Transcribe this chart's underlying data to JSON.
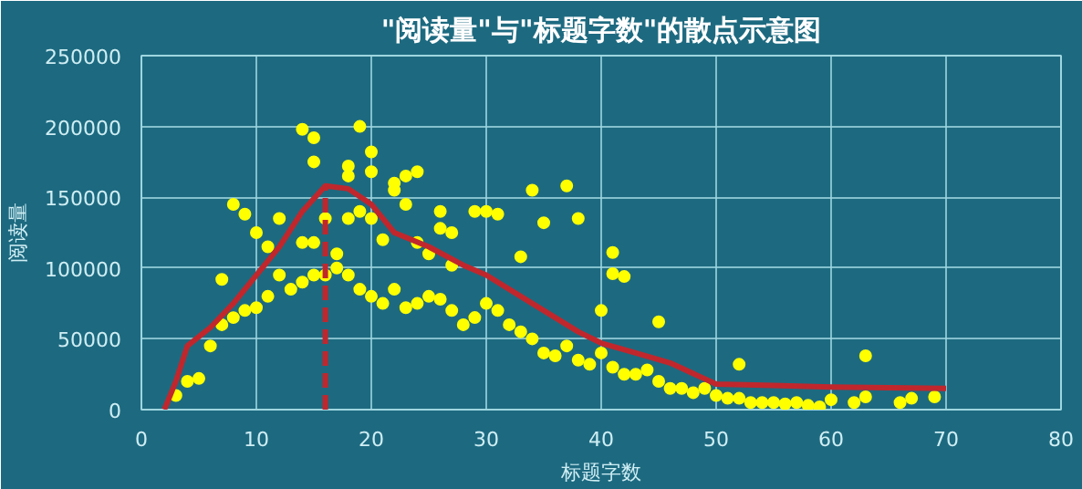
{
  "chart_data": {
    "type": "scatter",
    "title": "\"阅读量\"与\"标题字数\"的散点示意图",
    "xlabel": "标题字数",
    "ylabel": "阅读量",
    "xlim": [
      0,
      80
    ],
    "xticks": [
      0,
      10,
      20,
      30,
      40,
      50,
      60,
      70,
      80
    ],
    "ylim": [
      0,
      250000
    ],
    "yticks": [
      0,
      50000,
      100000,
      150000,
      200000,
      250000
    ],
    "grid": true,
    "series": [
      {
        "marker": "circle",
        "color": "#ffff00",
        "x": [
          3,
          4,
          5,
          6,
          7,
          8,
          9,
          10,
          11,
          12,
          13,
          14,
          15,
          16,
          17,
          18,
          19,
          20,
          21,
          22,
          23,
          24,
          25,
          26,
          27,
          28,
          29,
          30,
          31,
          32,
          33,
          34,
          35,
          36,
          37,
          38,
          39,
          40,
          41,
          42,
          43,
          44,
          45,
          46,
          47,
          48,
          49,
          50,
          51,
          52,
          53,
          54,
          55,
          56,
          57,
          58,
          59,
          60,
          62,
          63,
          66,
          67,
          69,
          14,
          15,
          15,
          19,
          20,
          20,
          18,
          18,
          22,
          23,
          24,
          22,
          8,
          9,
          10,
          12,
          11,
          14,
          15,
          16,
          17,
          18,
          19,
          20,
          21,
          23,
          26,
          26,
          27,
          29,
          30,
          31,
          34,
          35,
          27,
          33,
          37,
          38,
          41,
          41,
          42,
          40,
          45,
          52,
          63,
          7,
          24,
          25
        ],
        "values": [
          10000,
          20000,
          22000,
          45000,
          60000,
          65000,
          70000,
          72000,
          80000,
          95000,
          85000,
          90000,
          95000,
          95000,
          100000,
          95000,
          85000,
          80000,
          75000,
          85000,
          72000,
          75000,
          80000,
          78000,
          70000,
          60000,
          65000,
          75000,
          70000,
          60000,
          55000,
          50000,
          40000,
          38000,
          45000,
          35000,
          32000,
          40000,
          30000,
          25000,
          25000,
          28000,
          20000,
          15000,
          15000,
          12000,
          15000,
          10000,
          8000,
          8000,
          5000,
          5000,
          5000,
          4000,
          5000,
          3000,
          2000,
          7000,
          5000,
          9000,
          5000,
          8000,
          9000,
          198000,
          192000,
          175000,
          200000,
          182000,
          168000,
          172000,
          165000,
          160000,
          165000,
          168000,
          155000,
          145000,
          138000,
          125000,
          135000,
          115000,
          118000,
          118000,
          135000,
          110000,
          135000,
          140000,
          135000,
          120000,
          145000,
          140000,
          128000,
          125000,
          140000,
          140000,
          138000,
          155000,
          132000,
          102000,
          108000,
          158000,
          135000,
          111000,
          96000,
          94000,
          70000,
          62000,
          32000,
          38000,
          92000,
          118000,
          110000
        ]
      },
      {
        "type": "line",
        "marker": "none",
        "color": "#c0272d",
        "x": [
          2,
          3,
          4,
          6,
          8,
          10,
          12,
          14,
          16,
          18,
          20,
          22,
          25,
          28,
          30,
          33,
          35,
          38,
          40,
          43,
          46,
          50,
          55,
          60,
          70
        ],
        "values": [
          0,
          20000,
          45000,
          58000,
          75000,
          95000,
          115000,
          140000,
          158000,
          156000,
          145000,
          125000,
          115000,
          102000,
          95000,
          80000,
          70000,
          55000,
          47000,
          40000,
          33000,
          18000,
          17000,
          16000,
          15000
        ]
      },
      {
        "type": "line",
        "marker": "none",
        "color": "#c0272d",
        "line_style": "dashed",
        "x": [
          16,
          16
        ],
        "values": [
          0,
          158000
        ]
      }
    ]
  }
}
